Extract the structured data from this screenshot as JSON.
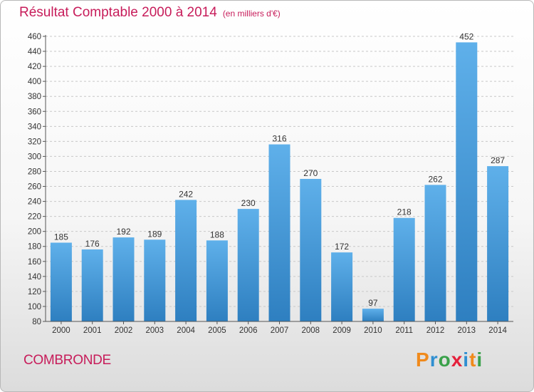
{
  "title": "Résultat Comptable 2000 à 2014",
  "subtitle": "(en milliers d'€)",
  "commune": "COMBRONDE",
  "logo": {
    "letters": [
      "P",
      "r",
      "o",
      "x",
      "i",
      "t",
      "i"
    ],
    "colors": [
      "#f08a1c",
      "#2f8fd1",
      "#3aa14a",
      "#e5213c",
      "#2f8fd1",
      "#f08a1c",
      "#3aa14a"
    ]
  },
  "colors": {
    "bar_light": "#5fb0ea",
    "bar_dark": "#2e7fc0",
    "accent": "#c71c5a"
  },
  "chart_data": {
    "type": "bar",
    "title": "Résultat Comptable 2000 à 2014",
    "ylabel": "",
    "xlabel": "",
    "ylim": [
      80,
      460
    ],
    "yticks": [
      80,
      100,
      120,
      140,
      160,
      180,
      200,
      220,
      240,
      260,
      280,
      300,
      320,
      340,
      360,
      380,
      400,
      420,
      440,
      460
    ],
    "categories": [
      "2000",
      "2001",
      "2002",
      "2003",
      "2004",
      "2005",
      "2006",
      "2007",
      "2008",
      "2009",
      "2010",
      "2011",
      "2012",
      "2013",
      "2014"
    ],
    "values": [
      185,
      176,
      192,
      189,
      242,
      188,
      230,
      316,
      270,
      172,
      97,
      218,
      262,
      452,
      287
    ],
    "grid": "horizontal dashed",
    "legend": "none"
  }
}
